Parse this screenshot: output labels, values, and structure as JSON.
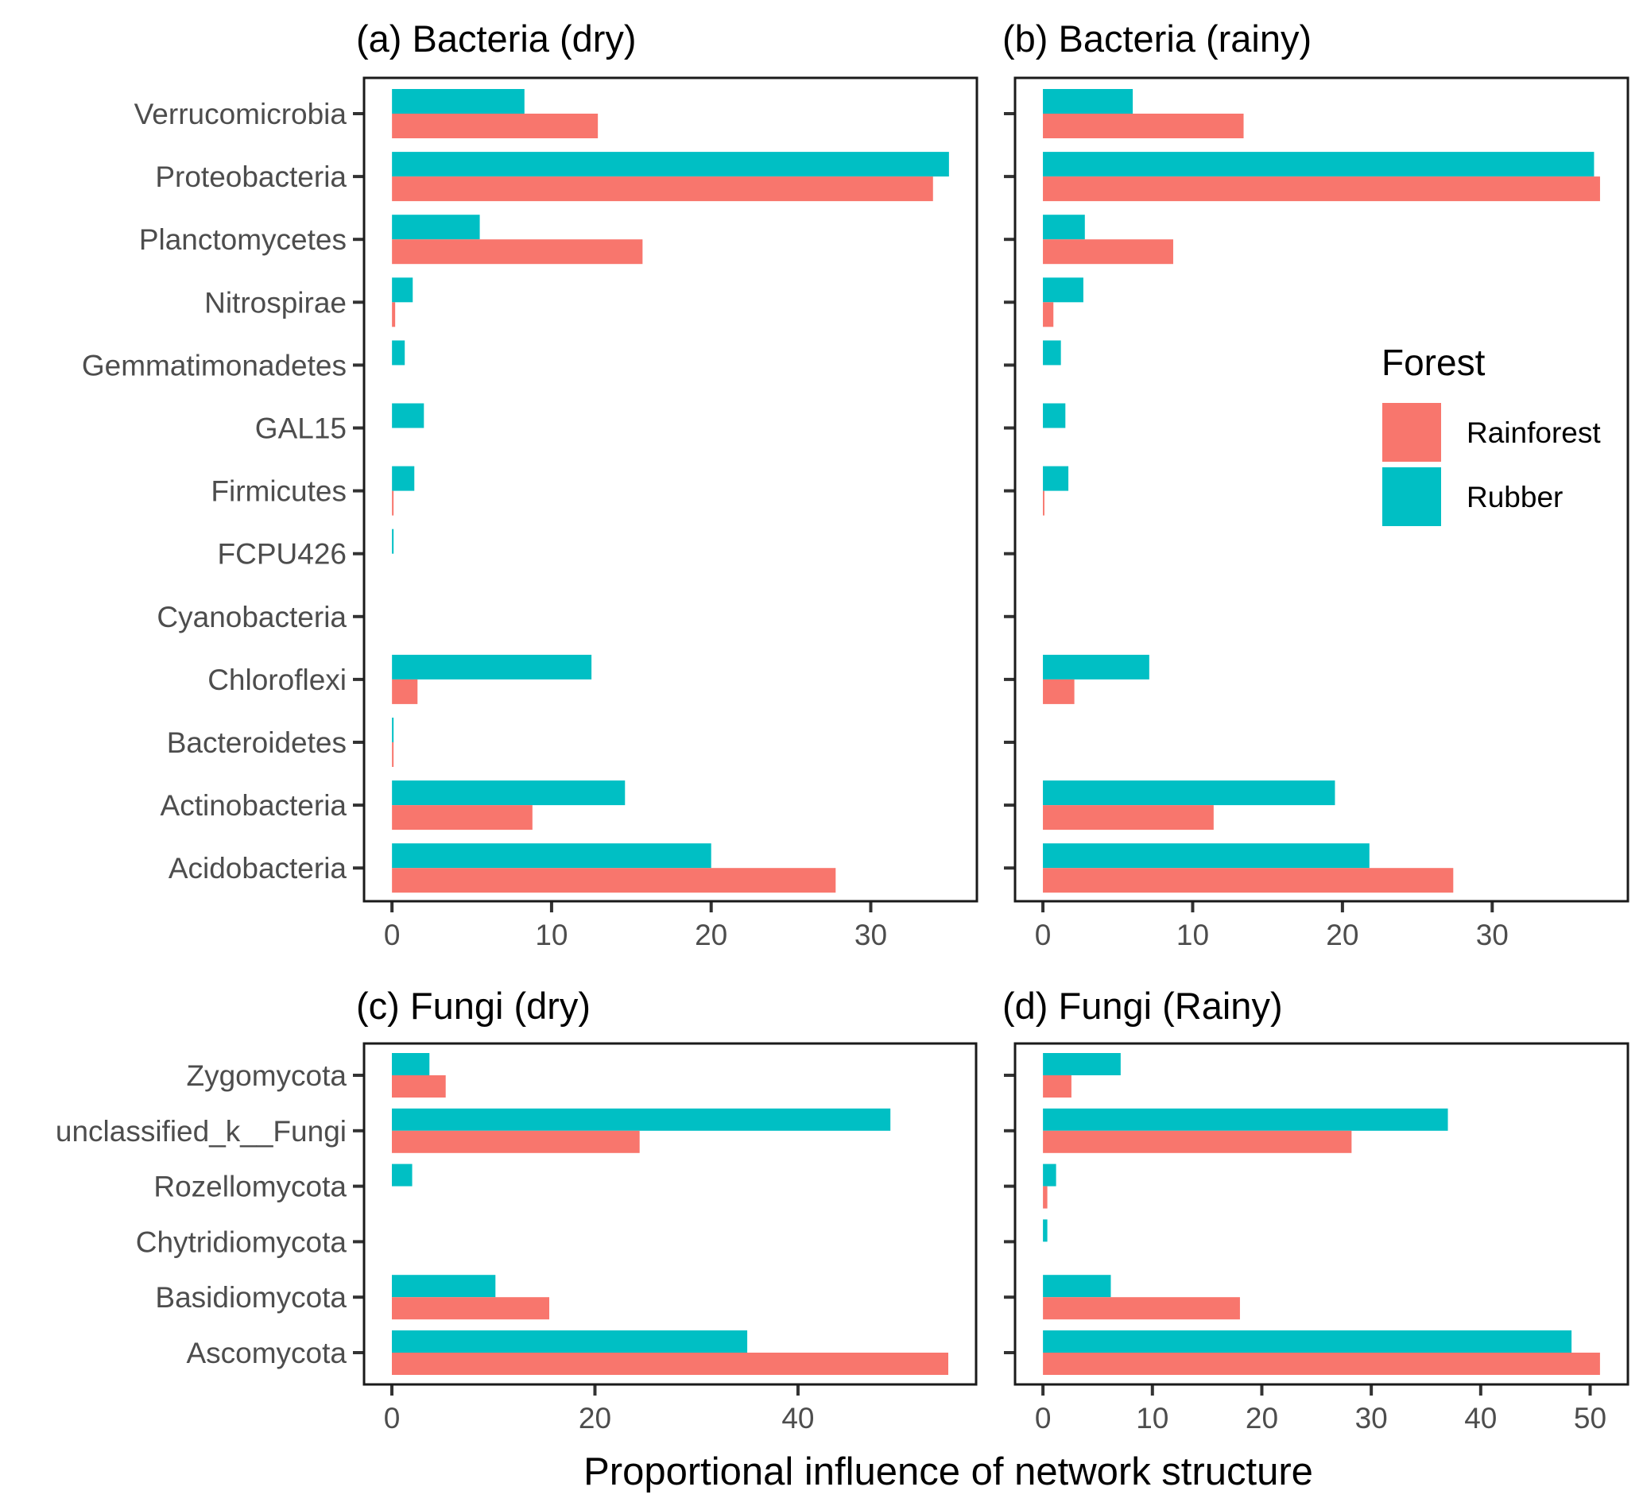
{
  "chart_data": [
    {
      "id": "a",
      "type": "bar",
      "orientation": "horizontal",
      "title": "(a) Bacteria (dry)",
      "categories": [
        "Verrucomicrobia",
        "Proteobacteria",
        "Planctomycetes",
        "Nitrospirae",
        "Gemmatimonadetes",
        "GAL15",
        "Firmicutes",
        "FCPU426",
        "Cyanobacteria",
        "Chloroflexi",
        "Bacteroidetes",
        "Actinobacteria",
        "Acidobacteria"
      ],
      "series": [
        {
          "name": "Rubber",
          "values": [
            8.3,
            34.9,
            5.5,
            1.3,
            0.8,
            2.0,
            1.4,
            0.1,
            0.0,
            12.5,
            0.1,
            14.6,
            20.0
          ]
        },
        {
          "name": "Rainforest",
          "values": [
            12.9,
            33.9,
            15.7,
            0.2,
            0.0,
            0.0,
            0.1,
            0.0,
            0.0,
            1.6,
            0.1,
            8.8,
            27.8
          ]
        }
      ],
      "xlim": [
        -1.75,
        36.65
      ],
      "xticks": [
        0,
        10,
        20,
        30
      ],
      "grid": false
    },
    {
      "id": "b",
      "type": "bar",
      "orientation": "horizontal",
      "title": "(b) Bacteria (rainy)",
      "categories": [
        "Verrucomicrobia",
        "Proteobacteria",
        "Planctomycetes",
        "Nitrospirae",
        "Gemmatimonadetes",
        "GAL15",
        "Firmicutes",
        "FCPU426",
        "Cyanobacteria",
        "Chloroflexi",
        "Bacteroidetes",
        "Actinobacteria",
        "Acidobacteria"
      ],
      "series": [
        {
          "name": "Rubber",
          "values": [
            6.0,
            36.8,
            2.8,
            2.7,
            1.2,
            1.5,
            1.7,
            0.0,
            0.0,
            7.1,
            0.0,
            19.5,
            21.8
          ]
        },
        {
          "name": "Rainforest",
          "values": [
            13.4,
            37.2,
            8.7,
            0.7,
            0.0,
            0.0,
            0.1,
            0.0,
            0.0,
            2.1,
            0.0,
            11.4,
            27.4
          ]
        }
      ],
      "xlim": [
        -1.86,
        39.06
      ],
      "xticks": [
        0,
        10,
        20,
        30
      ],
      "grid": false
    },
    {
      "id": "c",
      "type": "bar",
      "orientation": "horizontal",
      "title": "(c) Fungi (dry)",
      "categories": [
        "Zygomycota",
        "unclassified_k__Fungi",
        "Rozellomycota",
        "Chytridiomycota",
        "Basidiomycota",
        "Ascomycota"
      ],
      "series": [
        {
          "name": "Rubber",
          "values": [
            3.7,
            49.1,
            2.0,
            0.0,
            10.2,
            35.0
          ]
        },
        {
          "name": "Rainforest",
          "values": [
            5.3,
            24.4,
            0.0,
            0.0,
            15.5,
            54.8
          ]
        }
      ],
      "xlim": [
        -2.74,
        57.54
      ],
      "xticks": [
        0,
        20,
        40
      ],
      "grid": false
    },
    {
      "id": "d",
      "type": "bar",
      "orientation": "horizontal",
      "title": "(d) Fungi (Rainy)",
      "categories": [
        "Zygomycota",
        "unclassified_k__Fungi",
        "Rozellomycota",
        "Chytridiomycota",
        "Basidiomycota",
        "Ascomycota"
      ],
      "series": [
        {
          "name": "Rubber",
          "values": [
            7.1,
            37.0,
            1.2,
            0.4,
            6.2,
            48.3
          ]
        },
        {
          "name": "Rainforest",
          "values": [
            2.6,
            28.2,
            0.4,
            0.0,
            18.0,
            50.9
          ]
        }
      ],
      "xlim": [
        -2.55,
        53.45
      ],
      "xticks": [
        0,
        10,
        20,
        30,
        40,
        50
      ],
      "grid": false
    }
  ],
  "xlabel": "Proportional influence of network structure",
  "legend": {
    "title": "Forest",
    "placement": "right (inside panel b)",
    "entries": [
      {
        "name": "Rainforest",
        "color": "#F8766D"
      },
      {
        "name": "Rubber",
        "color": "#00BFC4"
      }
    ]
  },
  "colors": {
    "Rainforest": "#F8766D",
    "Rubber": "#00BFC4"
  }
}
